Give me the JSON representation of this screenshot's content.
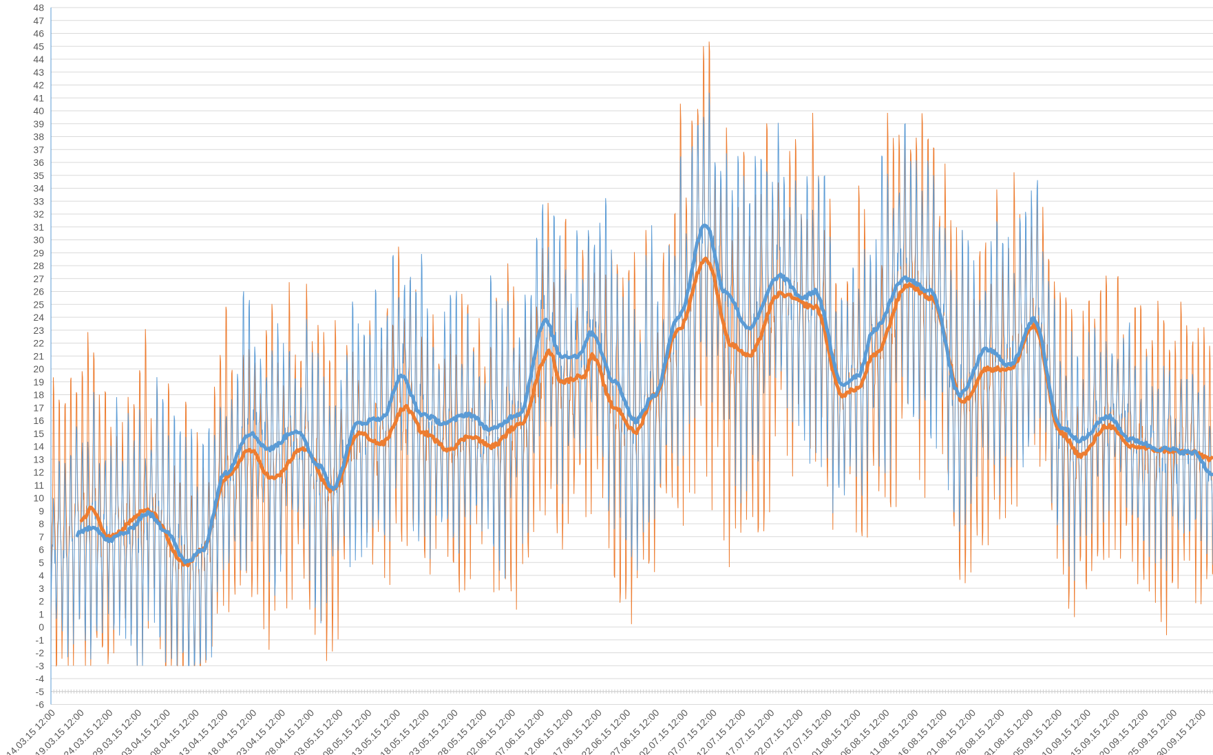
{
  "chart_data": {
    "type": "line",
    "title": "",
    "xlabel": "",
    "ylabel": "",
    "ylim": [
      -6,
      48
    ],
    "yticks": [
      -6,
      -5,
      -4,
      -3,
      -2,
      -1,
      0,
      1,
      2,
      3,
      4,
      5,
      6,
      7,
      8,
      9,
      10,
      11,
      12,
      13,
      14,
      15,
      16,
      17,
      18,
      19,
      20,
      21,
      22,
      23,
      24,
      25,
      26,
      27,
      28,
      29,
      30,
      31,
      32,
      33,
      34,
      35,
      36,
      37,
      38,
      39,
      40,
      41,
      42,
      43,
      44,
      45,
      46,
      47,
      48
    ],
    "x_unit": "days since 14.03.15 12:00",
    "xlim_days": [
      0,
      202
    ],
    "x_tick_step_days": 5,
    "x_tick_labels": [
      "14.03.15 12:00",
      "19.03.15 12:00",
      "24.03.15 12:00",
      "29.03.15 12:00",
      "03.04.15 12:00",
      "08.04.15 12:00",
      "13.04.15 12:00",
      "18.04.15 12:00",
      "23.04.15 12:00",
      "28.04.15 12:00",
      "03.05.15 12:00",
      "08.05.15 12:00",
      "13.05.15 12:00",
      "18.05.15 12:00",
      "23.05.15 12:00",
      "28.05.15 12:00",
      "02.06.15 12:00",
      "07.06.15 12:00",
      "12.06.15 12:00",
      "17.06.15 12:00",
      "22.06.15 12:00",
      "27.06.15 12:00",
      "02.07.15 12:00",
      "07.07.15 12:00",
      "12.07.15 12:00",
      "17.07.15 12:00",
      "22.07.15 12:00",
      "27.07.15 12:00",
      "01.08.15 12:00",
      "06.08.15 12:00",
      "11.08.15 12:00",
      "16.08.15 12:00",
      "21.08.15 12:00",
      "26.08.15 12:00",
      "31.08.15 12:00",
      "05.09.15 12:00",
      "10.09.15 12:00",
      "15.09.15 12:00",
      "20.09.15 12:00",
      "25.09.15 12:00",
      "30.09.15 12:00"
    ],
    "grid": true,
    "legend": "none",
    "colors": {
      "blue": "#5b9bd5",
      "orange": "#ed7d31",
      "grid": "#d9d9d9",
      "text": "#595959"
    },
    "series": [
      {
        "key": "blue_moving_average",
        "color": "#5b9bd5",
        "day": [
          4.6,
          7.3,
          10,
          12.8,
          16.8,
          20,
          23.6,
          26.3,
          30.4,
          34.5,
          37.9,
          42.6,
          46.7,
          49,
          53.5,
          57.5,
          61,
          64.4,
          68.4,
          72.5,
          76.5,
          81.3,
          86,
          88.7,
          91.5,
          94,
          98,
          101.6,
          105,
          109,
          113.8,
          117.2,
          121.3,
          126.7,
          130.8,
          132.8,
          137.6,
          140.3,
          143,
          148.4,
          153,
          158,
          162.7,
          166.8,
          170.8,
          175.6,
          179,
          183.7,
          187.8,
          193,
          198.6,
          202
        ],
        "value": [
          7.2,
          7.8,
          6.7,
          7.3,
          8.8,
          7.5,
          5.0,
          6,
          12,
          15,
          13.8,
          15.2,
          12.5,
          10.8,
          15.8,
          16.2,
          19.4,
          16.5,
          15.8,
          16.5,
          15.3,
          16.5,
          23.7,
          21,
          21,
          22.8,
          19,
          16,
          18,
          24,
          31.2,
          26,
          23.2,
          27.2,
          25.5,
          26,
          18.8,
          19.5,
          23,
          27,
          26,
          18,
          21.5,
          20.3,
          23.8,
          15.5,
          14.5,
          16.3,
          14.5,
          13.8,
          13.5,
          11.8
        ]
      },
      {
        "key": "orange_moving_average",
        "color": "#ed7d31",
        "day": [
          5.3,
          7.1,
          10,
          16.8,
          23.6,
          26.3,
          30.4,
          34.5,
          38.5,
          43.9,
          49,
          53.5,
          57.5,
          61.6,
          65,
          69,
          73,
          76.5,
          81.3,
          86.7,
          88.7,
          92.8,
          94,
          98,
          101.6,
          105,
          109,
          113.8,
          118.5,
          121.3,
          126.7,
          132.8,
          137.6,
          140.3,
          143,
          149,
          153,
          158.6,
          162.7,
          166.8,
          170.8,
          175.6,
          179,
          183.7,
          187.8,
          193,
          198.6,
          202
        ],
        "value": [
          8.3,
          9.2,
          7.0,
          9.0,
          4.8,
          6,
          11.5,
          13.7,
          11.5,
          13.8,
          10.5,
          15,
          14.2,
          17,
          15,
          13.8,
          14.8,
          14,
          15.6,
          21.3,
          19,
          19.5,
          21,
          17,
          15.1,
          18,
          23,
          28.5,
          21.8,
          21,
          25.8,
          24.8,
          18,
          18.5,
          21,
          26.5,
          25.5,
          17.5,
          20,
          20,
          23.3,
          15,
          13.3,
          15.6,
          14,
          13.7,
          13.5,
          13
        ]
      },
      {
        "key": "blue_raw",
        "color": "#5b9bd5",
        "samples_per_day": 12,
        "baseline": "blue_moving_average",
        "amplitude_day": [
          0,
          30,
          60,
          85,
          110,
          115,
          130,
          150,
          170,
          185,
          202
        ],
        "amplitude": [
          8,
          9,
          8,
          9,
          11,
          12,
          9,
          10,
          8,
          6,
          6
        ]
      },
      {
        "key": "orange_raw",
        "color": "#ed7d31",
        "samples_per_day": 12,
        "baseline": "orange_moving_average",
        "amplitude_day": [
          0,
          30,
          60,
          85,
          110,
          115,
          130,
          150,
          170,
          185,
          202
        ],
        "amplitude": [
          11,
          11,
          9,
          10,
          13,
          15,
          11,
          12,
          10,
          9,
          10
        ]
      }
    ]
  }
}
